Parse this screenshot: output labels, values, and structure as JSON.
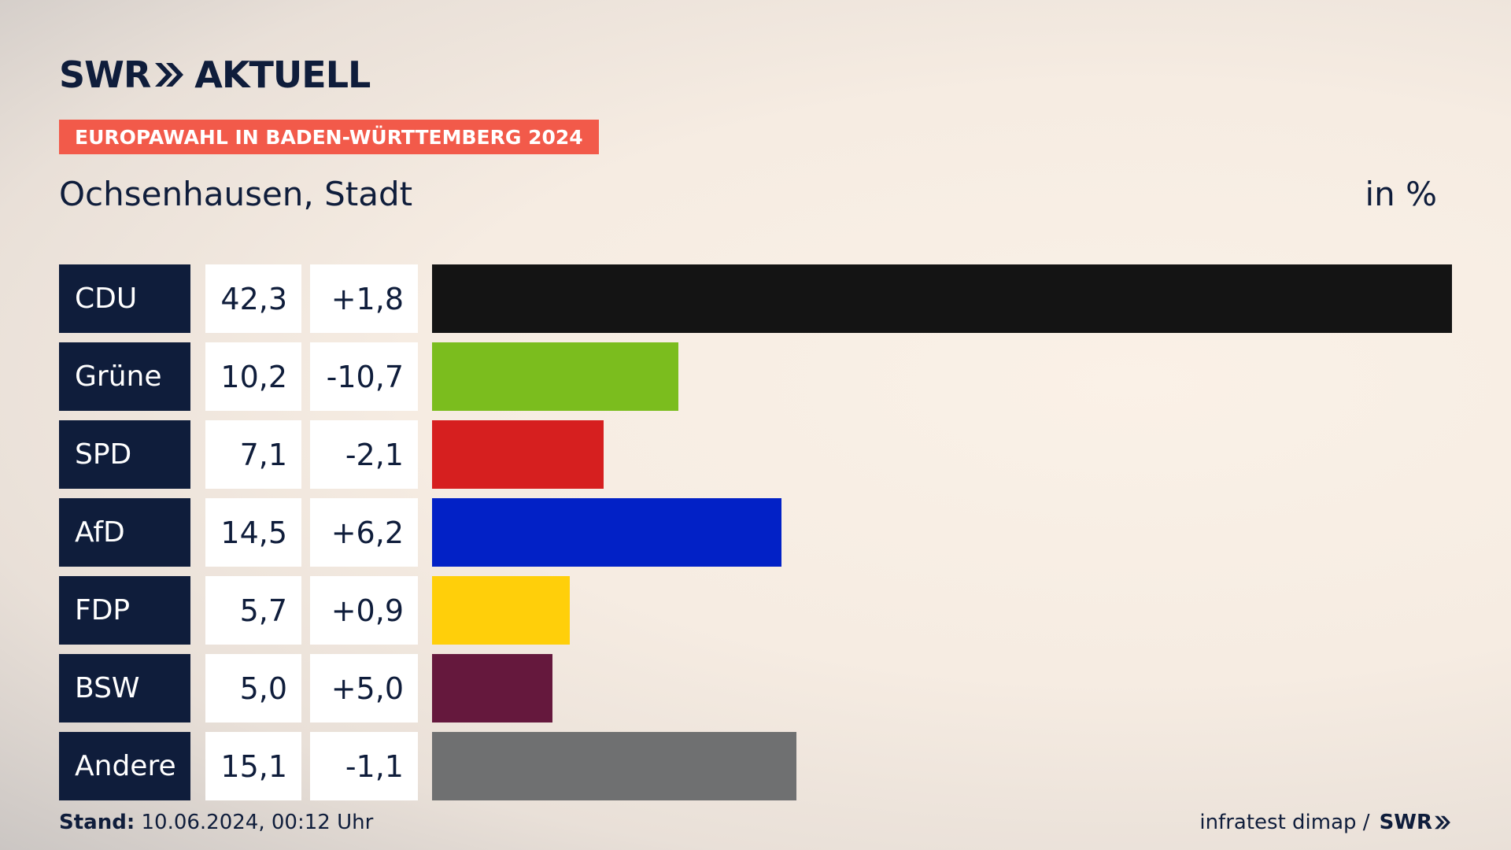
{
  "brand": {
    "logo_left": "SWR",
    "logo_right": "AKTUELL"
  },
  "header": {
    "badge": "EUROPAWAHL IN BADEN-WÜRTTEMBERG 2024",
    "title": "Ochsenhausen, Stadt",
    "unit": "in %"
  },
  "chart_data": {
    "type": "bar",
    "orientation": "horizontal",
    "categories": [
      "CDU",
      "Grüne",
      "SPD",
      "AfD",
      "FDP",
      "BSW",
      "Andere"
    ],
    "values": [
      42.3,
      10.2,
      7.1,
      14.5,
      5.7,
      5.0,
      15.1
    ],
    "value_labels": [
      "42,3",
      "10,2",
      "7,1",
      "14,5",
      "5,7",
      "5,0",
      "15,1"
    ],
    "diff_labels": [
      "+1,8",
      "-10,7",
      "-2,1",
      "+6,2",
      "+0,9",
      "+5,0",
      "-1,1"
    ],
    "colors": [
      "#141414",
      "#7bbd1e",
      "#d61f1f",
      "#0221c6",
      "#ffcf0a",
      "#65183d",
      "#6f7071"
    ],
    "xlim": [
      0,
      42.3
    ]
  },
  "footer": {
    "stand_label": "Stand:",
    "stand_value": "10.06.2024, 00:12 Uhr",
    "source": "infratest dimap /",
    "source_brand": "SWR"
  }
}
